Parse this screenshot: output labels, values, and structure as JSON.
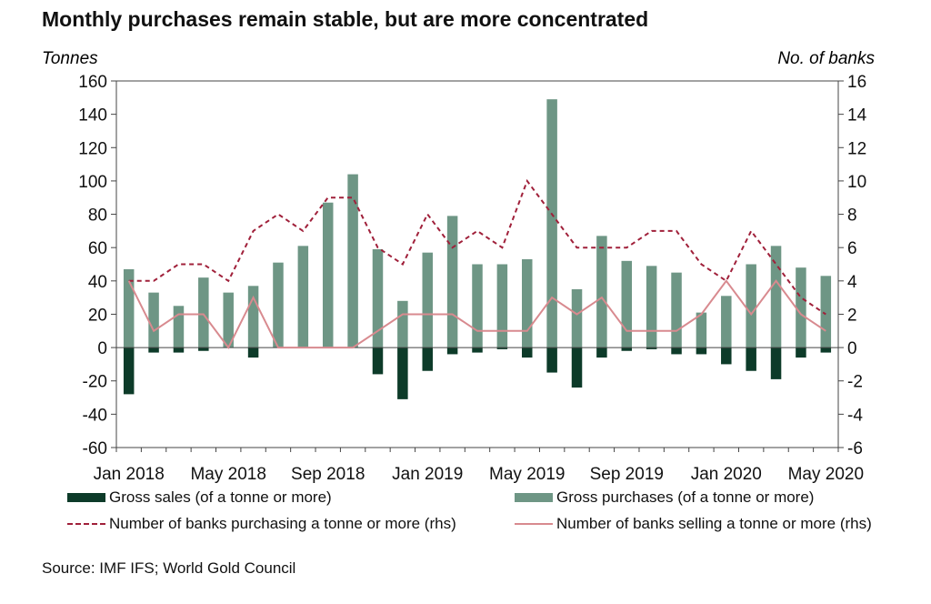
{
  "title": "Monthly purchases remain stable, but are more concentrated",
  "source": "Source: IMF IFS; World Gold Council",
  "colors": {
    "sales": "#0d3b29",
    "purchases": "#6e9685",
    "banks_purchasing": "#a0203a",
    "banks_selling": "#d88a8f",
    "axis": "#444444"
  },
  "chart_data": {
    "type": "bar",
    "title": "Monthly purchases remain stable, but are more concentrated",
    "ylabel_left": "Tonnes",
    "ylabel_right": "No. of banks",
    "ylim_left": [
      -60,
      160
    ],
    "ylim_right": [
      -6,
      16
    ],
    "yticks_left": [
      "160",
      "140",
      "120",
      "100",
      "80",
      "60",
      "40",
      "20",
      "0",
      "-20",
      "-40",
      "-60"
    ],
    "yticks_right": [
      "16",
      "14",
      "12",
      "10",
      "8",
      "6",
      "4",
      "2",
      "0",
      "-2",
      "-4",
      "-6"
    ],
    "xtick_labels": [
      "Jan 2018",
      "May 2018",
      "Sep 2018",
      "Jan 2019",
      "May 2019",
      "Sep 2019",
      "Jan 2020",
      "May 2020"
    ],
    "grid": false,
    "legend_position": "bottom",
    "categories": [
      "Jan 2018",
      "Feb 2018",
      "Mar 2018",
      "Apr 2018",
      "May 2018",
      "Jun 2018",
      "Jul 2018",
      "Aug 2018",
      "Sep 2018",
      "Oct 2018",
      "Nov 2018",
      "Dec 2018",
      "Jan 2019",
      "Feb 2019",
      "Mar 2019",
      "Apr 2019",
      "May 2019",
      "Jun 2019",
      "Jul 2019",
      "Aug 2019",
      "Sep 2019",
      "Oct 2019",
      "Nov 2019",
      "Dec 2019",
      "Jan 2020",
      "Feb 2020",
      "Mar 2020",
      "Apr 2020",
      "May 2020"
    ],
    "series": [
      {
        "name": "Gross sales (of a tonne or more)",
        "type": "bar",
        "axis": "left",
        "values": [
          -28,
          -3,
          -3,
          -2,
          0,
          -6,
          0,
          0,
          0,
          0,
          -16,
          -31,
          -14,
          -4,
          -3,
          -1,
          -6,
          -15,
          -24,
          -6,
          -2,
          -1,
          -4,
          -4,
          -10,
          -14,
          -19,
          -6,
          -3
        ]
      },
      {
        "name": "Gross purchases (of a tonne or more)",
        "type": "bar",
        "axis": "left",
        "values": [
          47,
          33,
          25,
          42,
          33,
          37,
          51,
          61,
          87,
          104,
          59,
          28,
          57,
          79,
          50,
          50,
          53,
          149,
          35,
          67,
          52,
          49,
          45,
          21,
          31,
          50,
          61,
          48,
          43
        ]
      },
      {
        "name": "Number of banks purchasing a tonne or more (rhs)",
        "type": "line",
        "axis": "right",
        "style": "dashed",
        "values": [
          4,
          4,
          5,
          5,
          4,
          7,
          8,
          7,
          9,
          9,
          6,
          5,
          8,
          6,
          7,
          6,
          10,
          8,
          6,
          6,
          6,
          7,
          7,
          5,
          4,
          7,
          5,
          3,
          2
        ]
      },
      {
        "name": "Number of banks selling a tonne or more (rhs)",
        "type": "line",
        "axis": "right",
        "style": "solid",
        "values": [
          4,
          1,
          2,
          2,
          0,
          3,
          0,
          0,
          0,
          0,
          1,
          2,
          2,
          2,
          1,
          1,
          1,
          3,
          2,
          3,
          1,
          1,
          1,
          2,
          4,
          2,
          4,
          2,
          1
        ]
      }
    ]
  }
}
